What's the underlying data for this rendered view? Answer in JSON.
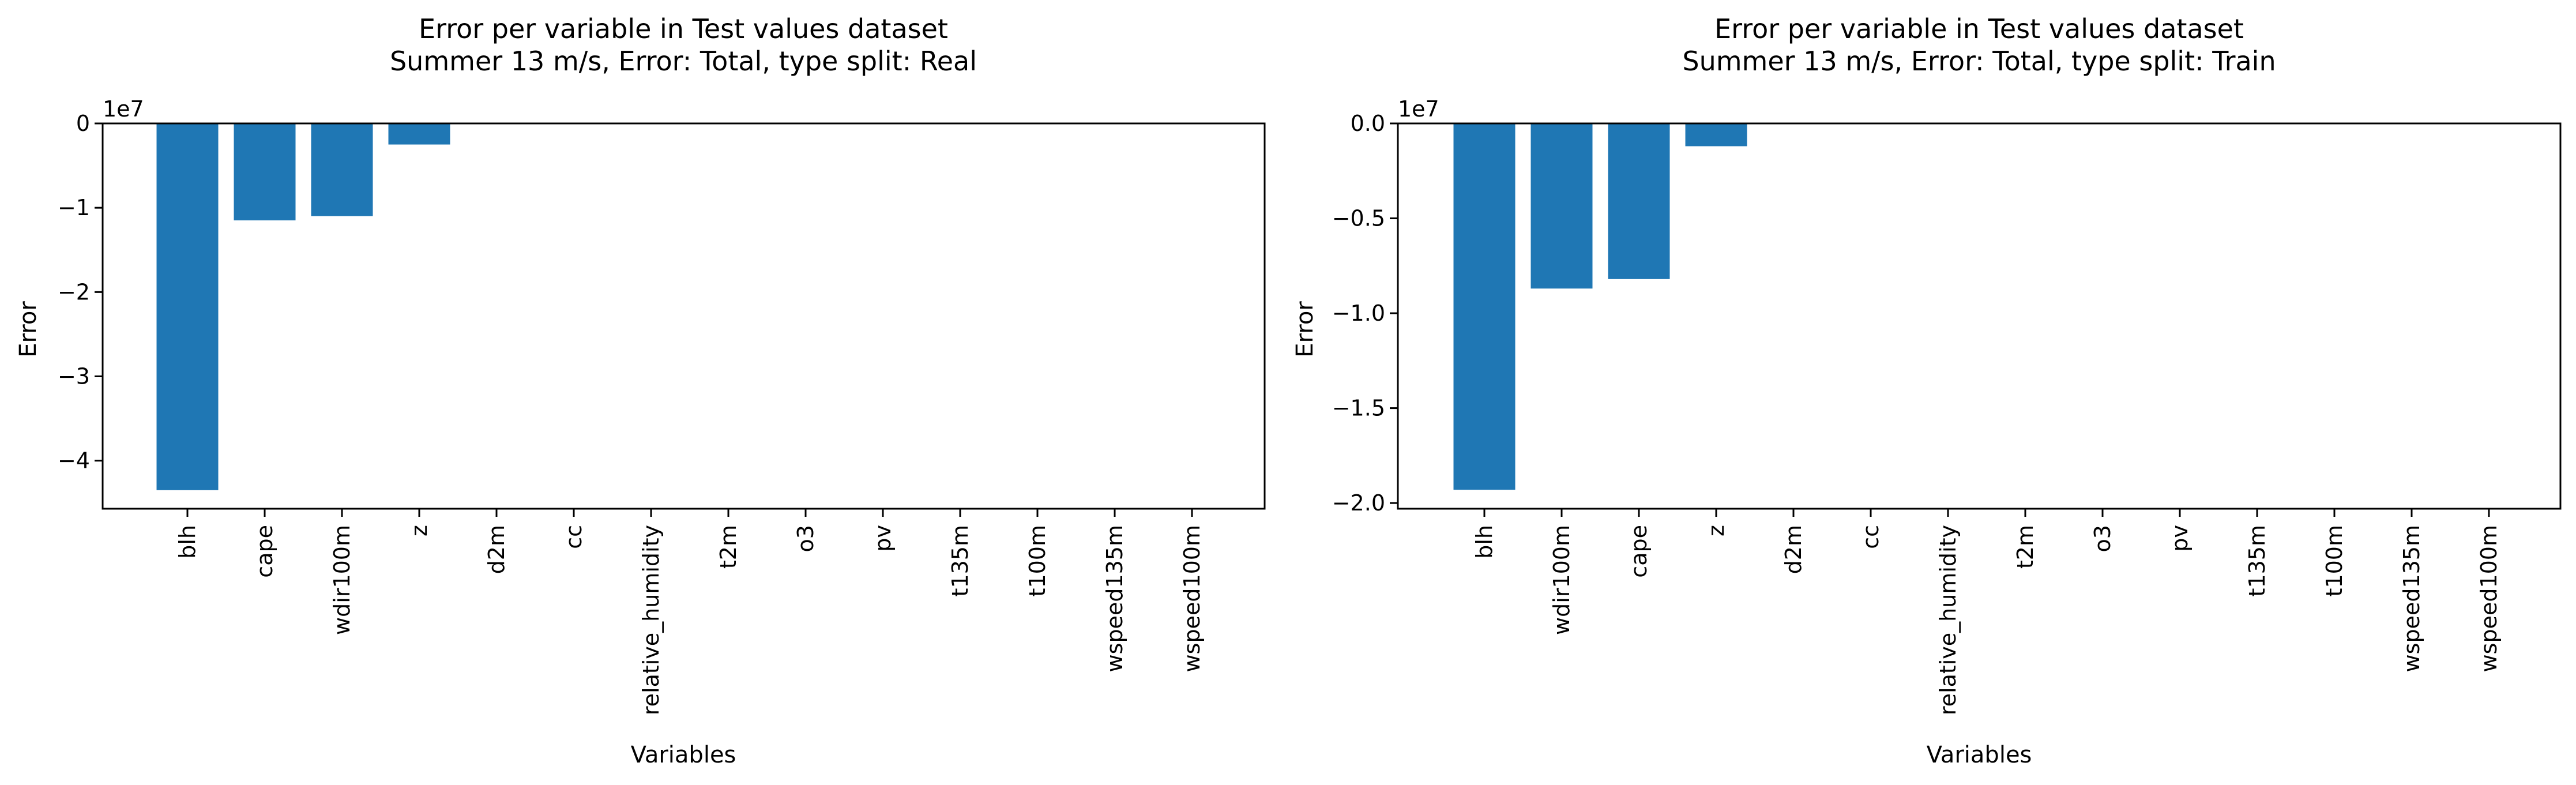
{
  "colors": {
    "bar": "#1f77b4",
    "axes": "#000000",
    "background": "#ffffff"
  },
  "chart_data": [
    {
      "type": "bar",
      "title": "Error per variable in Test values dataset",
      "subtitle": "Summer 13 m/s, Error: Total, type split: Real",
      "xlabel": "Variables",
      "ylabel": "Error",
      "y_multiplier_label": "1e7",
      "categories": [
        "blh",
        "cape",
        "wdir100m",
        "z",
        "d2m",
        "cc",
        "relative_humidity",
        "t2m",
        "o3",
        "pv",
        "t135m",
        "t100m",
        "wspeed135m",
        "wspeed100m"
      ],
      "values": [
        -43500000.0,
        -11500000.0,
        -11000000.0,
        -2500000.0,
        0,
        0,
        0,
        0,
        0,
        0,
        0,
        0,
        0,
        0
      ],
      "ylim": [
        -45700000.0,
        0
      ],
      "yticks": [
        0,
        -10000000.0,
        -20000000.0,
        -30000000.0,
        -40000000.0
      ],
      "ytick_labels": [
        "0",
        "−1",
        "−2",
        "−3",
        "−4"
      ],
      "grid": false,
      "legend": "none"
    },
    {
      "type": "bar",
      "title": "Error per variable in Test values dataset",
      "subtitle": "Summer 13 m/s, Error: Total, type split: Train",
      "xlabel": "Variables",
      "ylabel": "Error",
      "y_multiplier_label": "1e7",
      "categories": [
        "blh",
        "wdir100m",
        "cape",
        "z",
        "d2m",
        "cc",
        "relative_humidity",
        "t2m",
        "o3",
        "pv",
        "t135m",
        "t100m",
        "wspeed135m",
        "wspeed100m"
      ],
      "values": [
        -19300000.0,
        -8700000.0,
        -8200000.0,
        -1200000.0,
        0,
        0,
        0,
        0,
        0,
        0,
        0,
        0,
        0,
        0
      ],
      "ylim": [
        -20300000.0,
        0
      ],
      "yticks": [
        0,
        -5000000.0,
        -10000000.0,
        -15000000.0,
        -20000000.0
      ],
      "ytick_labels": [
        "0.0",
        "−0.5",
        "−1.0",
        "−1.5",
        "−2.0"
      ],
      "grid": false,
      "legend": "none"
    }
  ]
}
